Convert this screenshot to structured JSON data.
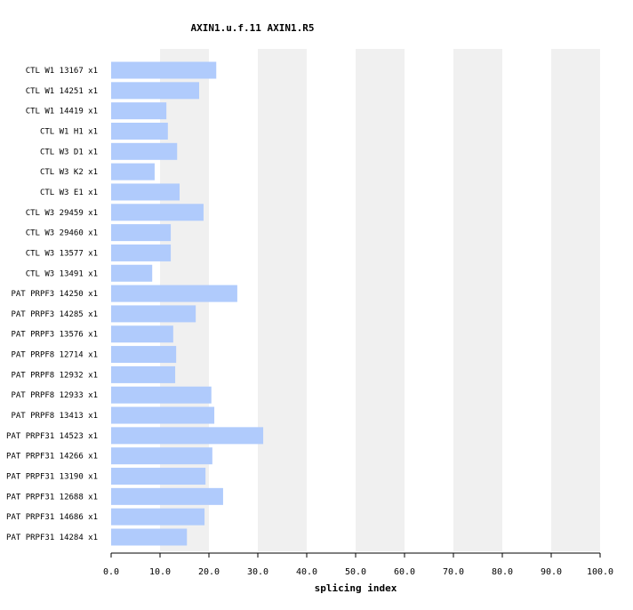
{
  "chart_data": {
    "type": "bar",
    "orientation": "horizontal",
    "title": "AXIN1.u.f.11  AXIN1.R5",
    "xlabel": "splicing index",
    "ylabel": "",
    "xlim": [
      0,
      100
    ],
    "xticks": [
      "0.0",
      "10.0",
      "20.0",
      "30.0",
      "40.0",
      "50.0",
      "60.0",
      "70.0",
      "80.0",
      "90.0",
      "100.0"
    ],
    "grid": "alternating vertical bands",
    "bar_color": "#b0cbfc",
    "band_color": "#f0f0f0",
    "categories": [
      "CTL W1 13167 x1",
      "CTL W1 14251 x1",
      "CTL W1 14419 x1",
      "CTL W1 H1 x1",
      "CTL W3 D1 x1",
      "CTL W3 K2 x1",
      "CTL W3 E1 x1",
      "CTL W3 29459 x1",
      "CTL W3 29460 x1",
      "CTL W3 13577 x1",
      "CTL W3 13491 x1",
      "PAT PRPF3 14250 x1",
      "PAT PRPF3 14285 x1",
      "PAT PRPF3 13576 x1",
      "PAT PRPF8 12714 x1",
      "PAT PRPF8 12932 x1",
      "PAT PRPF8 12933 x1",
      "PAT PRPF8 13413 x1",
      "PAT PRPF31 14523 x1",
      "PAT PRPF31 14266 x1",
      "PAT PRPF31 13190 x1",
      "PAT PRPF31 12688 x1",
      "PAT PRPF31 14686 x1",
      "PAT PRPF31 14284 x1"
    ],
    "values": [
      21.5,
      18.0,
      11.3,
      11.6,
      13.5,
      8.9,
      14.0,
      18.9,
      12.2,
      12.2,
      8.4,
      25.8,
      17.3,
      12.7,
      13.3,
      13.1,
      20.5,
      21.1,
      31.1,
      20.7,
      19.3,
      22.9,
      19.1,
      15.5
    ]
  }
}
